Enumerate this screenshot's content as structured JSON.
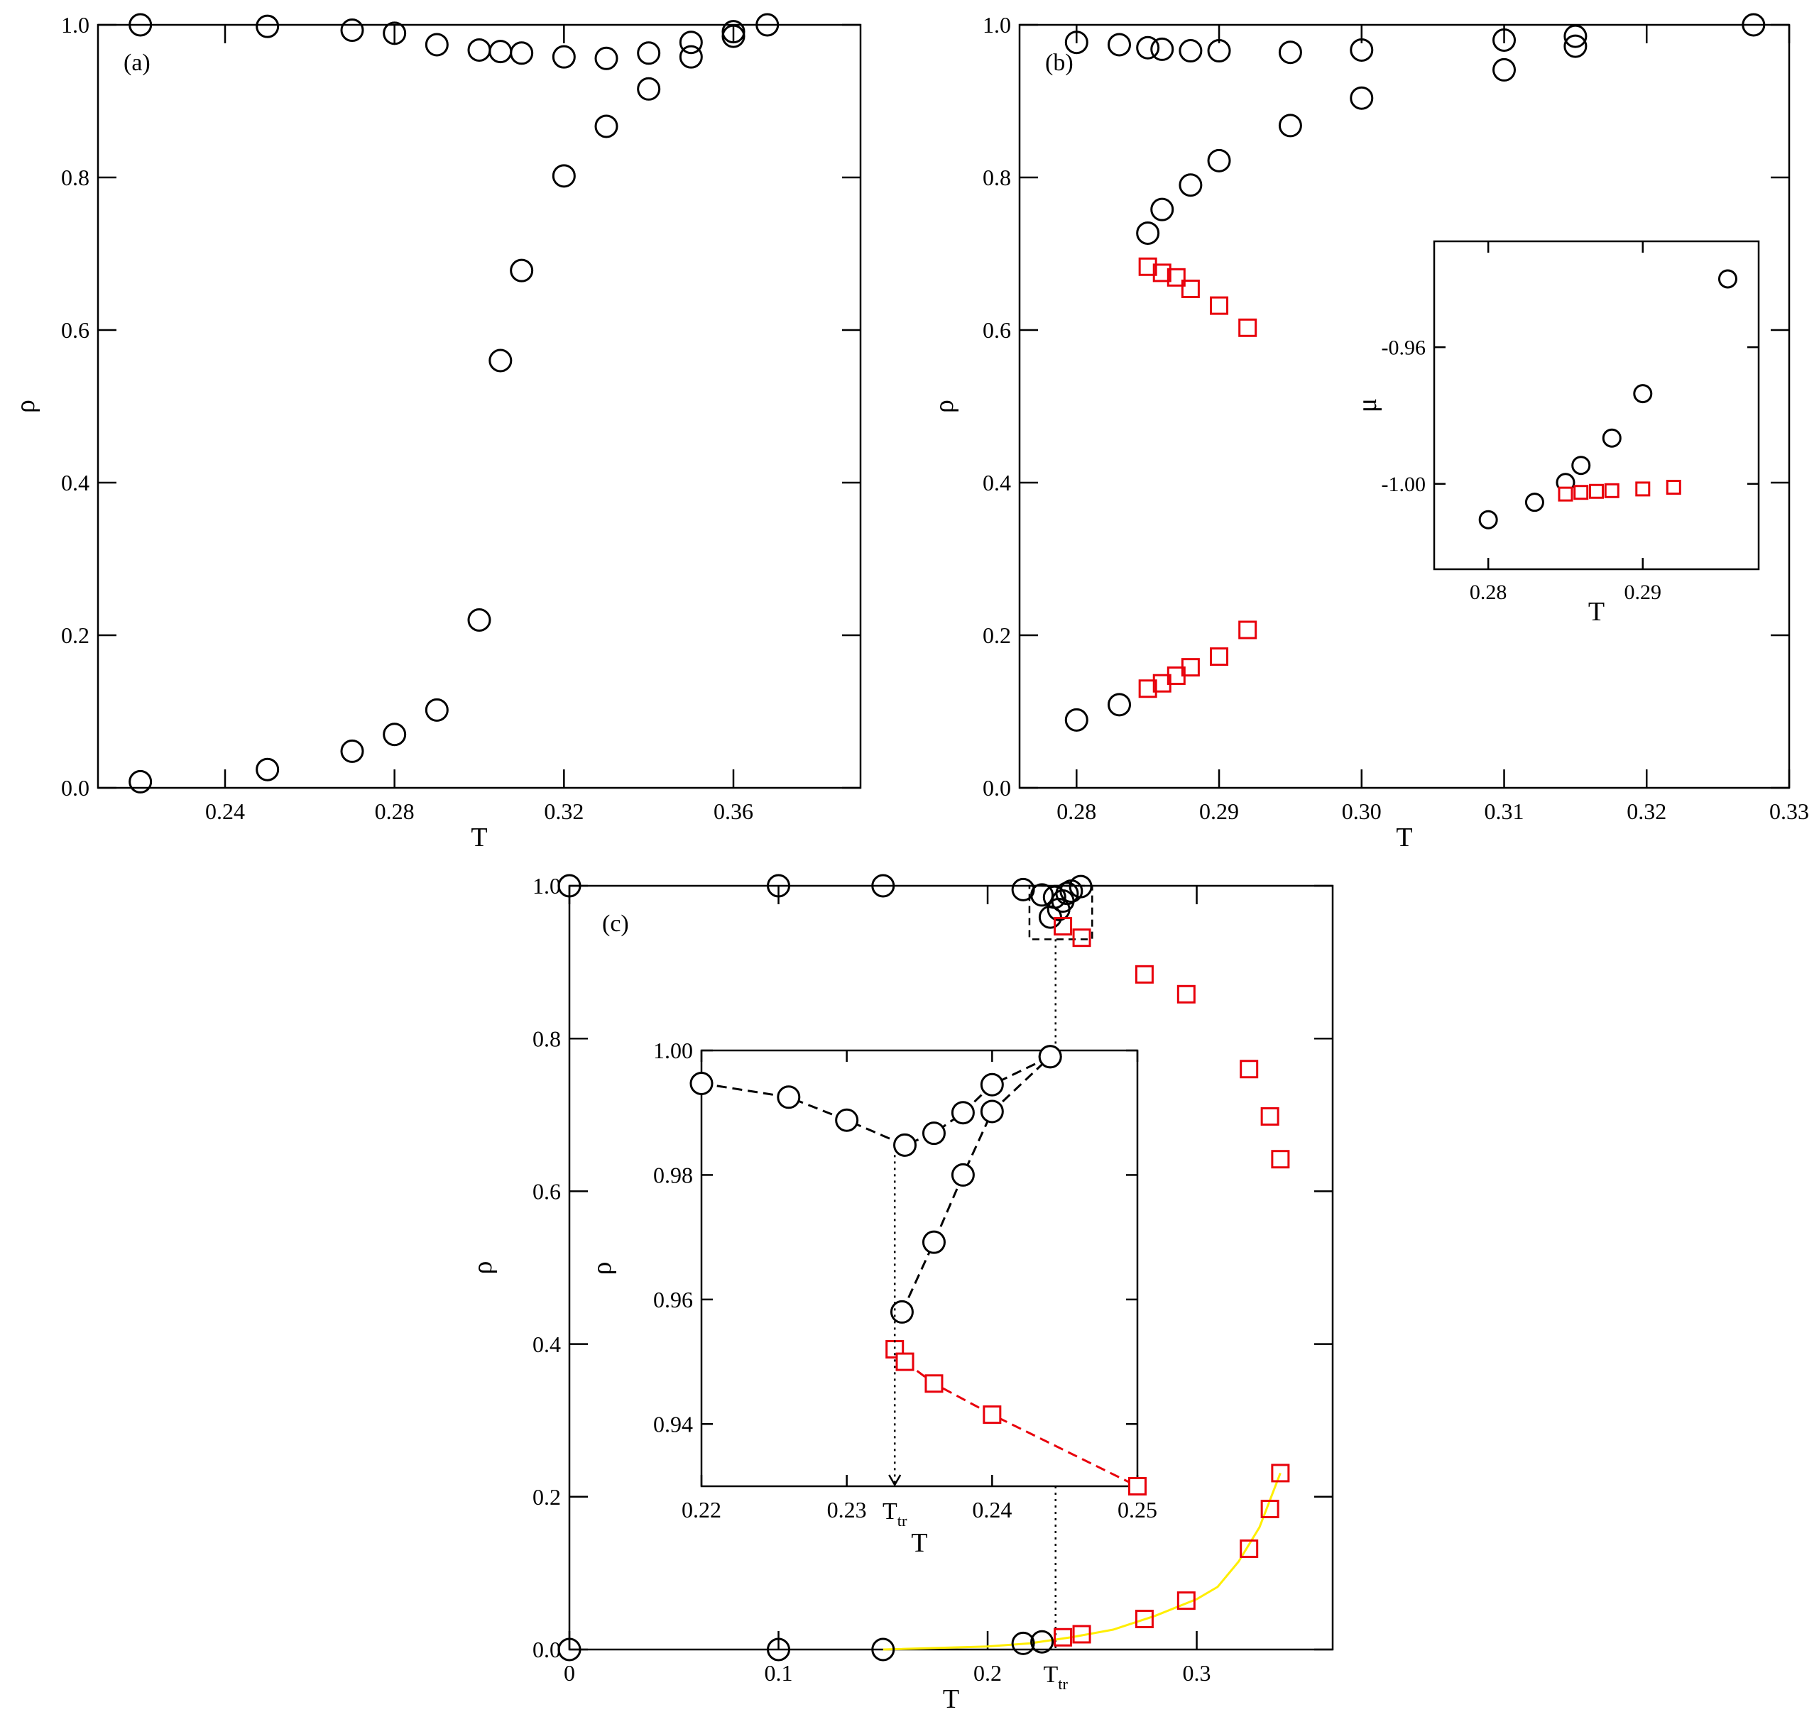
{
  "colors": {
    "circle": "#000000",
    "square": "#e8000b",
    "fit": "#ffee00",
    "frame": "#000000"
  },
  "chart_data": [
    {
      "id": "a",
      "type": "scatter",
      "panel_label": "(a)",
      "xlabel": "T",
      "ylabel": "ρ",
      "xlim": [
        0.21,
        0.39
      ],
      "ylim": [
        0.0,
        1.0
      ],
      "xticks": [
        0.24,
        0.28,
        0.32,
        0.36
      ],
      "xtick_labels": [
        "0.24",
        "0.28",
        "0.32",
        "0.36"
      ],
      "yticks": [
        0.0,
        0.2,
        0.4,
        0.6,
        0.8,
        1.0
      ],
      "ytick_labels": [
        "0.0",
        "0.2",
        "0.4",
        "0.6",
        "0.8",
        "1.0"
      ],
      "grid": false,
      "series": [
        {
          "marker": "circle",
          "color": "#000000",
          "x": [
            0.22,
            0.25,
            0.27,
            0.28,
            0.29,
            0.3,
            0.305,
            0.31,
            0.32,
            0.33,
            0.34,
            0.35,
            0.36,
            0.368,
            0.22,
            0.25,
            0.27,
            0.28,
            0.29,
            0.3,
            0.305,
            0.31,
            0.32,
            0.33,
            0.34,
            0.35,
            0.36
          ],
          "y": [
            1.0,
            0.998,
            0.993,
            0.989,
            0.974,
            0.967,
            0.965,
            0.963,
            0.958,
            0.956,
            0.963,
            0.977,
            0.991,
            1.0,
            0.008,
            0.024,
            0.048,
            0.07,
            0.102,
            0.22,
            0.56,
            0.678,
            0.802,
            0.867,
            0.916,
            0.958,
            0.985
          ]
        }
      ]
    },
    {
      "id": "b",
      "type": "scatter",
      "panel_label": "(b)",
      "xlabel": "T",
      "ylabel": "ρ",
      "xlim": [
        0.276,
        0.33
      ],
      "ylim": [
        0.0,
        1.0
      ],
      "xticks": [
        0.28,
        0.29,
        0.3,
        0.31,
        0.32,
        0.33
      ],
      "xtick_labels": [
        "0.28",
        "0.29",
        "0.30",
        "0.31",
        "0.32",
        "0.33"
      ],
      "yticks": [
        0.0,
        0.2,
        0.4,
        0.6,
        0.8,
        1.0
      ],
      "ytick_labels": [
        "0.0",
        "0.2",
        "0.4",
        "0.6",
        "0.8",
        "1.0"
      ],
      "grid": false,
      "series": [
        {
          "marker": "circle",
          "color": "#000000",
          "x": [
            0.28,
            0.283,
            0.285,
            0.286,
            0.288,
            0.29,
            0.295,
            0.3,
            0.31,
            0.315,
            0.3275,
            0.285,
            0.286,
            0.288,
            0.29,
            0.295,
            0.3,
            0.31,
            0.315,
            0.28,
            0.283
          ],
          "y": [
            0.977,
            0.974,
            0.97,
            0.968,
            0.966,
            0.966,
            0.964,
            0.967,
            0.98,
            0.985,
            1.0,
            0.727,
            0.758,
            0.79,
            0.822,
            0.868,
            0.904,
            0.941,
            0.972,
            0.089,
            0.109
          ]
        },
        {
          "marker": "square",
          "color": "#e8000b",
          "x": [
            0.285,
            0.286,
            0.287,
            0.288,
            0.29,
            0.292,
            0.285,
            0.286,
            0.287,
            0.288,
            0.29,
            0.292
          ],
          "y": [
            0.683,
            0.675,
            0.669,
            0.654,
            0.632,
            0.603,
            0.13,
            0.137,
            0.147,
            0.158,
            0.172,
            0.207
          ]
        }
      ]
    },
    {
      "id": "b-inset",
      "type": "scatter",
      "panel_label": "",
      "xlabel": "T",
      "ylabel": "μ",
      "xlim": [
        0.2765,
        0.2975
      ],
      "ylim": [
        -1.025,
        -0.929
      ],
      "xticks": [
        0.28,
        0.29
      ],
      "xtick_labels": [
        "0.28",
        "0.29"
      ],
      "yticks": [
        -1.0,
        -0.96
      ],
      "ytick_labels": [
        "-1.00",
        "-0.96"
      ],
      "grid": false,
      "series": [
        {
          "marker": "circle",
          "color": "#000000",
          "x": [
            0.28,
            0.283,
            0.285,
            0.286,
            0.288,
            0.29,
            0.2955
          ],
          "y": [
            -1.0105,
            -1.0054,
            -0.9996,
            -0.9946,
            -0.9866,
            -0.9736,
            -0.94
          ]
        },
        {
          "marker": "square",
          "color": "#e8000b",
          "x": [
            0.285,
            0.286,
            0.287,
            0.288,
            0.29,
            0.292
          ],
          "y": [
            -1.003,
            -1.0025,
            -1.0022,
            -1.002,
            -1.0015,
            -1.001
          ]
        }
      ]
    },
    {
      "id": "c",
      "type": "scatter",
      "panel_label": "(c)",
      "xlabel": "T",
      "ylabel": "ρ",
      "xlim": [
        0.0,
        0.365
      ],
      "ylim": [
        0.0,
        1.0
      ],
      "xticks": [
        0.0,
        0.1,
        0.2,
        0.3
      ],
      "xtick_labels": [
        "0",
        "0.1",
        "0.2",
        "0.3"
      ],
      "extra_xtick": {
        "value": 0.2325,
        "label": "T",
        "sub": "tr"
      },
      "yticks": [
        0.0,
        0.2,
        0.4,
        0.6,
        0.8,
        1.0
      ],
      "ytick_labels": [
        "0.0",
        "0.2",
        "0.4",
        "0.6",
        "0.8",
        "1.0"
      ],
      "grid": false,
      "zoom_box": {
        "x": [
          0.22,
          0.25
        ],
        "y": [
          0.93,
          1.0
        ]
      },
      "series": [
        {
          "marker": "circle",
          "color": "#000000",
          "x": [
            0.0,
            0.1,
            0.15,
            0.217,
            0.226,
            0.23,
            0.232,
            0.234,
            0.236,
            0.238,
            0.24,
            0.2445,
            0.0,
            0.1,
            0.15,
            0.217,
            0.226
          ],
          "y": [
            1.0,
            1.0,
            1.0,
            0.995,
            0.988,
            0.959,
            0.985,
            0.969,
            0.98,
            0.99,
            0.993,
            0.999,
            0.0,
            0.0,
            0.0,
            0.008,
            0.01
          ]
        },
        {
          "marker": "square",
          "color": "#e8000b",
          "x": [
            0.236,
            0.245,
            0.275,
            0.295,
            0.325,
            0.335,
            0.34,
            0.236,
            0.245,
            0.275,
            0.295,
            0.325,
            0.335,
            0.34
          ],
          "y": [
            0.947,
            0.932,
            0.884,
            0.858,
            0.76,
            0.698,
            0.642,
            0.016,
            0.02,
            0.04,
            0.064,
            0.132,
            0.184,
            0.231
          ]
        },
        {
          "type": "line",
          "color": "#ffee00",
          "x": [
            0.15,
            0.2,
            0.22,
            0.24,
            0.26,
            0.28,
            0.3,
            0.31,
            0.32,
            0.33,
            0.34
          ],
          "y": [
            0.0,
            0.004,
            0.008,
            0.016,
            0.026,
            0.044,
            0.066,
            0.082,
            0.115,
            0.16,
            0.231
          ]
        }
      ]
    },
    {
      "id": "c-inset",
      "type": "line",
      "panel_label": "",
      "xlabel": "T",
      "ylabel": "ρ",
      "xlim": [
        0.22,
        0.25
      ],
      "ylim": [
        0.93,
        1.0
      ],
      "xticks": [
        0.22,
        0.23,
        0.24,
        0.25
      ],
      "xtick_labels": [
        "0.22",
        "0.23",
        "0.24",
        "0.25"
      ],
      "extra_xtick": {
        "value": 0.2333,
        "label": "T",
        "sub": "tr"
      },
      "yticks": [
        0.94,
        0.96,
        0.98,
        1.0
      ],
      "ytick_labels": [
        "0.94",
        "0.96",
        "0.98",
        "1.00"
      ],
      "grid": false,
      "series": [
        {
          "marker": "circle",
          "color": "#000000",
          "line": "dashed",
          "x": [
            0.22,
            0.226,
            0.23,
            0.234,
            0.236,
            0.238,
            0.24,
            0.244
          ],
          "y": [
            0.9947,
            0.9925,
            0.9888,
            0.9848,
            0.9867,
            0.99,
            0.9945,
            0.999
          ]
        },
        {
          "marker": "circle",
          "color": "#000000",
          "line": "dashed",
          "x": [
            0.2338,
            0.236,
            0.238,
            0.24,
            0.244
          ],
          "y": [
            0.958,
            0.9692,
            0.98,
            0.9902,
            0.999
          ]
        },
        {
          "marker": "square",
          "color": "#e8000b",
          "line": "dashed",
          "x": [
            0.2333,
            0.234,
            0.236,
            0.24,
            0.25
          ],
          "y": [
            0.952,
            0.95,
            0.9465,
            0.9415,
            0.93
          ]
        }
      ]
    }
  ]
}
